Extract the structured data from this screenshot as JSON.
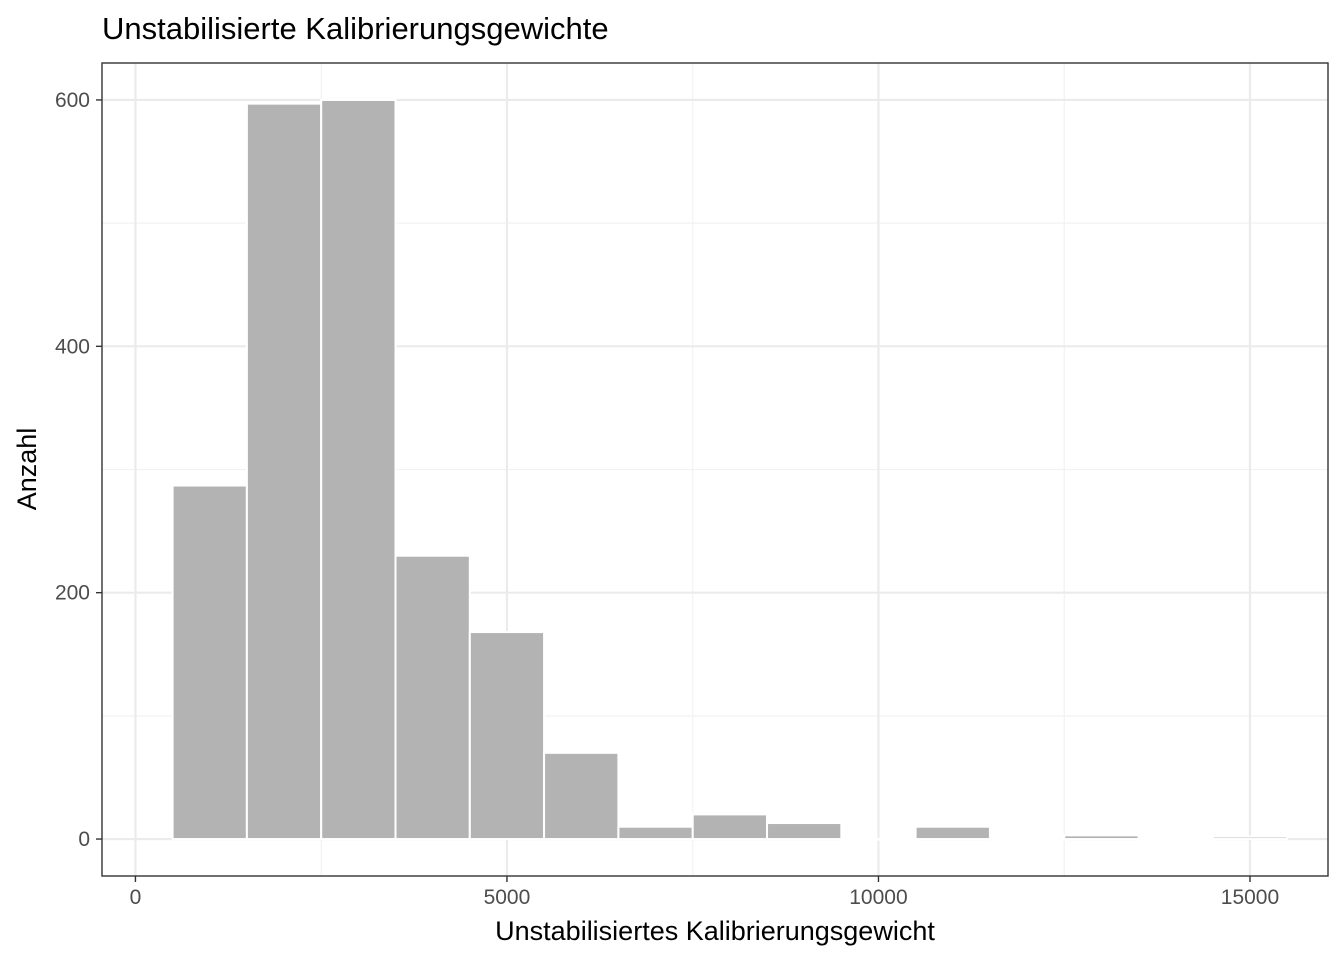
{
  "chart_data": {
    "type": "bar",
    "subtype": "histogram",
    "title": "Unstabilisierte Kalibrierungsgewichte",
    "xlabel": "Unstabilisiertes Kalibrierungsgewicht",
    "ylabel": "Anzahl",
    "bin_width": 1000,
    "bins": [
      {
        "x_start": 500,
        "x_end": 1500,
        "count": 287
      },
      {
        "x_start": 1500,
        "x_end": 2500,
        "count": 597
      },
      {
        "x_start": 2500,
        "x_end": 3500,
        "count": 600
      },
      {
        "x_start": 3500,
        "x_end": 4500,
        "count": 230
      },
      {
        "x_start": 4500,
        "x_end": 5500,
        "count": 168
      },
      {
        "x_start": 5500,
        "x_end": 6500,
        "count": 70
      },
      {
        "x_start": 6500,
        "x_end": 7500,
        "count": 10
      },
      {
        "x_start": 7500,
        "x_end": 8500,
        "count": 20
      },
      {
        "x_start": 8500,
        "x_end": 9500,
        "count": 13
      },
      {
        "x_start": 9500,
        "x_end": 10500,
        "count": 0
      },
      {
        "x_start": 10500,
        "x_end": 11500,
        "count": 10
      },
      {
        "x_start": 11500,
        "x_end": 12500,
        "count": 0
      },
      {
        "x_start": 12500,
        "x_end": 13500,
        "count": 3
      },
      {
        "x_start": 13500,
        "x_end": 14500,
        "count": 0
      },
      {
        "x_start": 14500,
        "x_end": 15500,
        "count": 2
      }
    ],
    "xlim": [
      -450,
      16050
    ],
    "ylim": [
      -30,
      630
    ],
    "x_ticks": [
      0,
      5000,
      10000,
      15000
    ],
    "x_tick_labels": [
      "0",
      "5000",
      "10000",
      "15000"
    ],
    "y_ticks": [
      0,
      200,
      400,
      600
    ],
    "y_tick_labels": [
      "0",
      "200",
      "400",
      "600"
    ],
    "grid": true,
    "legend": "none",
    "colors": {
      "bar_fill": "#b3b3b3",
      "bar_stroke": "#ffffff",
      "panel_border": "#333333",
      "grid_major": "#ebebeb",
      "grid_minor": "#f2f2f2",
      "tick_label": "#4d4d4d"
    }
  }
}
